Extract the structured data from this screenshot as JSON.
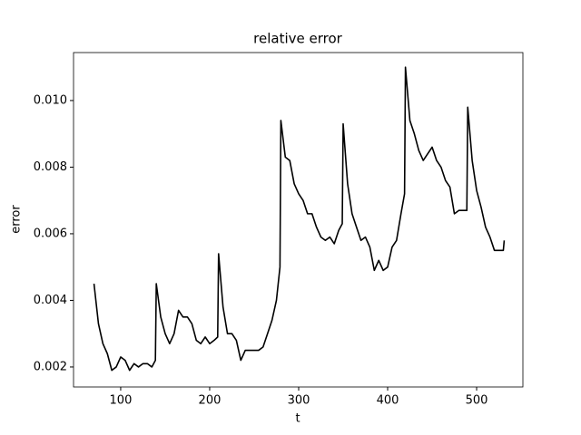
{
  "chart_data": {
    "type": "line",
    "title": "relative error",
    "x_label": "t",
    "y_label": "error",
    "x": [
      70,
      75,
      80,
      85,
      90,
      95,
      100,
      105,
      110,
      115,
      120,
      125,
      130,
      135,
      139,
      140,
      145,
      150,
      155,
      160,
      165,
      170,
      175,
      180,
      185,
      190,
      195,
      200,
      205,
      209,
      210,
      215,
      220,
      225,
      230,
      235,
      240,
      245,
      250,
      255,
      260,
      265,
      270,
      275,
      279,
      280,
      285,
      290,
      295,
      300,
      305,
      310,
      315,
      320,
      325,
      330,
      335,
      340,
      345,
      349,
      350,
      355,
      360,
      365,
      370,
      375,
      380,
      385,
      390,
      395,
      400,
      405,
      410,
      415,
      419,
      420,
      425,
      430,
      435,
      440,
      445,
      450,
      455,
      460,
      465,
      470,
      475,
      480,
      485,
      489,
      490,
      495,
      500,
      505,
      510,
      515,
      520,
      525,
      530,
      531
    ],
    "series": [
      {
        "name": "relative error",
        "color": "#000000",
        "values": [
          0.0045,
          0.0033,
          0.0027,
          0.0024,
          0.0019,
          0.002,
          0.0023,
          0.0022,
          0.0019,
          0.0021,
          0.002,
          0.0021,
          0.0021,
          0.002,
          0.0022,
          0.0045,
          0.0035,
          0.003,
          0.0027,
          0.003,
          0.0037,
          0.0035,
          0.0035,
          0.0033,
          0.0028,
          0.0027,
          0.0029,
          0.0027,
          0.0028,
          0.0029,
          0.0054,
          0.0038,
          0.003,
          0.003,
          0.0028,
          0.0022,
          0.0025,
          0.0025,
          0.0025,
          0.0025,
          0.0026,
          0.003,
          0.0034,
          0.004,
          0.005,
          0.0094,
          0.0083,
          0.0082,
          0.0075,
          0.0072,
          0.007,
          0.0066,
          0.0066,
          0.0062,
          0.0059,
          0.0058,
          0.0059,
          0.0057,
          0.0061,
          0.0063,
          0.0093,
          0.0075,
          0.0066,
          0.0062,
          0.0058,
          0.0059,
          0.0056,
          0.0049,
          0.0052,
          0.0049,
          0.005,
          0.0056,
          0.0058,
          0.0066,
          0.0072,
          0.011,
          0.0094,
          0.009,
          0.0085,
          0.0082,
          0.0084,
          0.0086,
          0.0082,
          0.008,
          0.0076,
          0.0074,
          0.0066,
          0.0067,
          0.0067,
          0.0067,
          0.0098,
          0.0082,
          0.0073,
          0.0068,
          0.0062,
          0.0059,
          0.0055,
          0.0055,
          0.0055,
          0.0058
        ]
      }
    ],
    "xlim": [
      47,
      552
    ],
    "ylim": [
      0.0014,
      0.01144
    ],
    "xticks": [
      100,
      200,
      300,
      400,
      500
    ],
    "yticks": [
      0.002,
      0.004,
      0.006,
      0.008,
      {
        "value": 0.01,
        "label": "0.010"
      }
    ]
  }
}
